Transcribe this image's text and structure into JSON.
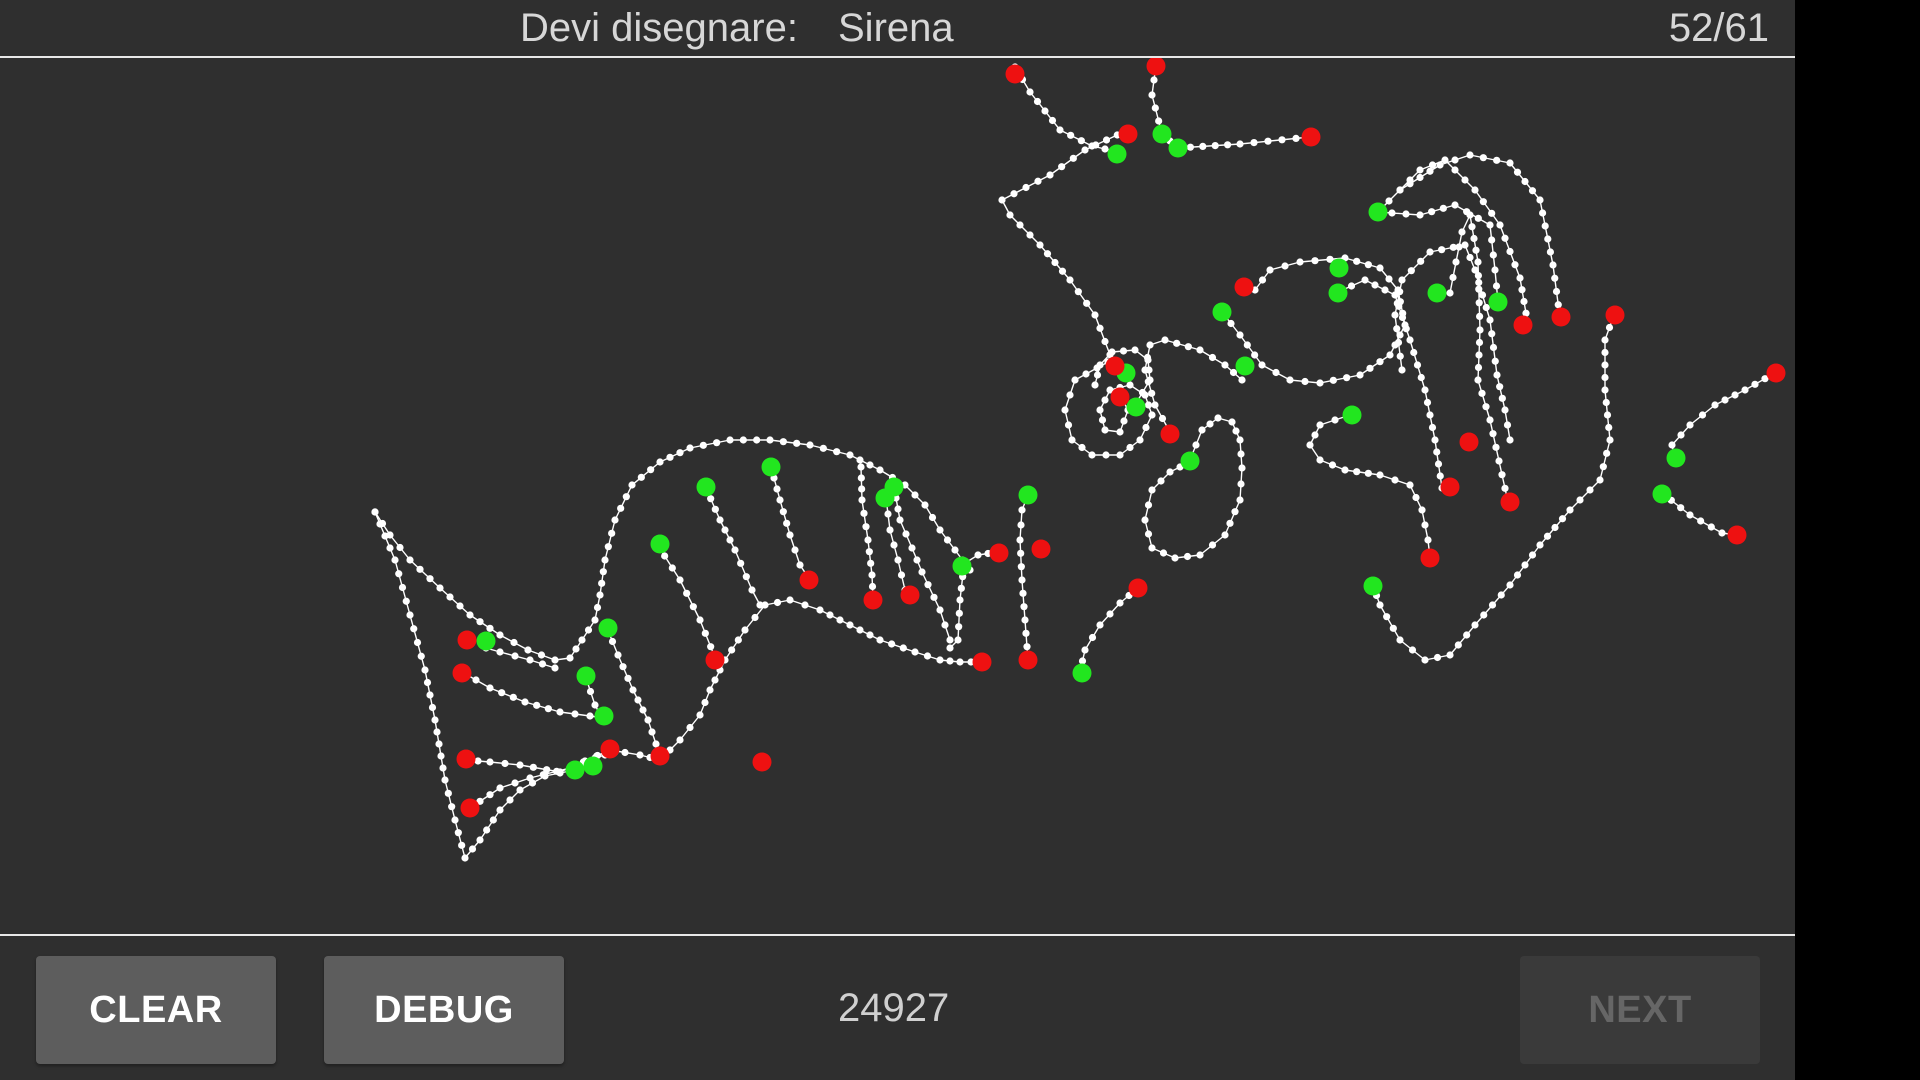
{
  "header": {
    "prompt_label": "Devi disegnare:",
    "prompt_word": "Sirena",
    "progress": "52/61"
  },
  "footer": {
    "clear_label": "CLEAR",
    "debug_label": "DEBUG",
    "score": "24927",
    "next_label": "NEXT"
  },
  "colors": {
    "background": "#2f2f2f",
    "stroke": "#ffffff",
    "stroke_start": "#22e61f",
    "stroke_end": "#ee1111"
  },
  "icons": {
    "canvas": "drawing-canvas"
  }
}
